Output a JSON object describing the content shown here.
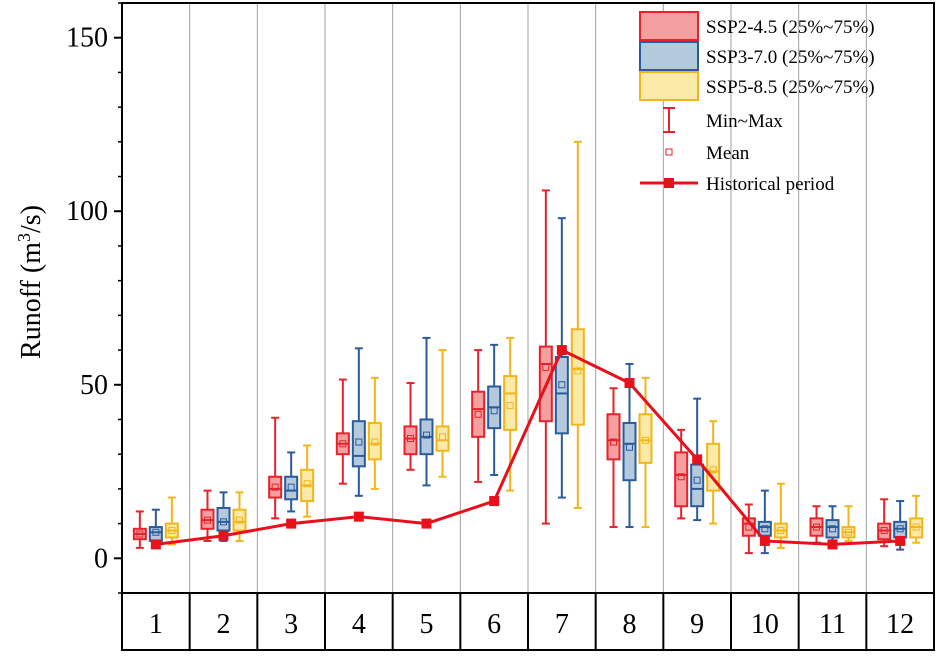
{
  "chart_data": {
    "type": "box",
    "ylabel_main": "Runoff (m",
    "ylabel_sup": "3",
    "ylabel_tail": "/s)",
    "ylim": [
      -10,
      160
    ],
    "yticks": [
      0,
      50,
      100,
      150
    ],
    "yticks_labels": [
      "0",
      "50",
      "100",
      "150"
    ],
    "categories": [
      "1",
      "2",
      "3",
      "4",
      "5",
      "6",
      "7",
      "8",
      "9",
      "10",
      "11",
      "12"
    ],
    "grid": "vertical-separators",
    "legend_position": "top-right",
    "series": [
      {
        "name": "SSP2-4.5 (25%~75%)",
        "edge_color": "#e8222a",
        "fill_color": "#f5a0a0",
        "boxes": [
          {
            "min": 3,
            "q1": 5.5,
            "median": 7,
            "q3": 8.5,
            "max": 13.5,
            "mean": 7
          },
          {
            "min": 5,
            "q1": 8.5,
            "median": 11,
            "q3": 14,
            "max": 19.5,
            "mean": 11
          },
          {
            "min": 11.5,
            "q1": 17.5,
            "median": 20,
            "q3": 23.5,
            "max": 40.5,
            "mean": 20.5
          },
          {
            "min": 21.5,
            "q1": 30,
            "median": 33,
            "q3": 36,
            "max": 51.5,
            "mean": 33
          },
          {
            "min": 25.5,
            "q1": 30,
            "median": 34.5,
            "q3": 38,
            "max": 50.5,
            "mean": 34.5
          },
          {
            "min": 22,
            "q1": 35,
            "median": 43,
            "q3": 48,
            "max": 60,
            "mean": 41.5
          },
          {
            "min": 10,
            "q1": 39.5,
            "median": 56,
            "q3": 61,
            "max": 106,
            "mean": 55
          },
          {
            "min": 9,
            "q1": 28.5,
            "median": 34,
            "q3": 41.5,
            "max": 49,
            "mean": 33.5
          },
          {
            "min": 11.5,
            "q1": 15,
            "median": 24,
            "q3": 30.5,
            "max": 37,
            "mean": 23.5
          },
          {
            "min": 1.5,
            "q1": 6.5,
            "median": 10,
            "q3": 11.5,
            "max": 15.5,
            "mean": 9
          },
          {
            "min": 4.5,
            "q1": 6.5,
            "median": 9,
            "q3": 11.5,
            "max": 15,
            "mean": 9
          },
          {
            "min": 3.5,
            "q1": 5.5,
            "median": 8,
            "q3": 10,
            "max": 17,
            "mean": 8
          }
        ]
      },
      {
        "name": "SSP3-7.0 (25%~75%)",
        "edge_color": "#2a5b9a",
        "fill_color": "#b4c9de",
        "boxes": [
          {
            "min": 3,
            "q1": 5,
            "median": 7.5,
            "q3": 9,
            "max": 14,
            "mean": 7.5
          },
          {
            "min": 5,
            "q1": 8,
            "median": 10.5,
            "q3": 14.5,
            "max": 19,
            "mean": 10.5
          },
          {
            "min": 13.5,
            "q1": 17,
            "median": 19.5,
            "q3": 23.5,
            "max": 30.5,
            "mean": 20.5
          },
          {
            "min": 18,
            "q1": 26.5,
            "median": 29.5,
            "q3": 39.5,
            "max": 60.5,
            "mean": 33.5
          },
          {
            "min": 21,
            "q1": 30,
            "median": 35,
            "q3": 40,
            "max": 63.5,
            "mean": 35.5
          },
          {
            "min": 24,
            "q1": 37.5,
            "median": 43.5,
            "q3": 49.5,
            "max": 61.5,
            "mean": 42.5
          },
          {
            "min": 17.5,
            "q1": 36,
            "median": 47.5,
            "q3": 58,
            "max": 98,
            "mean": 50
          },
          {
            "min": 9,
            "q1": 22.5,
            "median": 33,
            "q3": 39,
            "max": 56,
            "mean": 32
          },
          {
            "min": 11,
            "q1": 15,
            "median": 20,
            "q3": 27,
            "max": 46,
            "mean": 22.5
          },
          {
            "min": 1.5,
            "q1": 6.5,
            "median": 9,
            "q3": 10.5,
            "max": 19.5,
            "mean": 8.5
          },
          {
            "min": 4.5,
            "q1": 6,
            "median": 9,
            "q3": 11,
            "max": 15,
            "mean": 8.5
          },
          {
            "min": 2.5,
            "q1": 6,
            "median": 8.5,
            "q3": 10.5,
            "max": 16.5,
            "mean": 8.5
          }
        ]
      },
      {
        "name": "SSP5-8.5 (25%~75%)",
        "edge_color": "#f2b61a",
        "fill_color": "#fbe9a8",
        "boxes": [
          {
            "min": 4,
            "q1": 6,
            "median": 8,
            "q3": 10,
            "max": 17.5,
            "mean": 8
          },
          {
            "min": 5,
            "q1": 8,
            "median": 10.5,
            "q3": 14,
            "max": 19,
            "mean": 11
          },
          {
            "min": 12,
            "q1": 16.5,
            "median": 21,
            "q3": 25.5,
            "max": 32.5,
            "mean": 21.5
          },
          {
            "min": 20,
            "q1": 28.5,
            "median": 33,
            "q3": 39,
            "max": 52,
            "mean": 33.5
          },
          {
            "min": 23.5,
            "q1": 31,
            "median": 34,
            "q3": 38,
            "max": 60,
            "mean": 35
          },
          {
            "min": 19.5,
            "q1": 37,
            "median": 47.5,
            "q3": 52.5,
            "max": 63.5,
            "mean": 44
          },
          {
            "min": 14.5,
            "q1": 38.5,
            "median": 54.5,
            "q3": 66,
            "max": 120,
            "mean": 54
          },
          {
            "min": 9,
            "q1": 27.5,
            "median": 34,
            "q3": 41.5,
            "max": 52,
            "mean": 34
          },
          {
            "min": 10,
            "q1": 19.5,
            "median": 25,
            "q3": 33,
            "max": 39.5,
            "mean": 25.5
          },
          {
            "min": 3,
            "q1": 6,
            "median": 8,
            "q3": 10,
            "max": 21.5,
            "mean": 8
          },
          {
            "min": 5,
            "q1": 6,
            "median": 7.5,
            "q3": 9,
            "max": 15,
            "mean": 7.5
          },
          {
            "min": 4.5,
            "q1": 6,
            "median": 9,
            "q3": 11.5,
            "max": 18,
            "mean": 9
          }
        ]
      }
    ],
    "historical": {
      "name": "Historical period",
      "color": "#e8101a",
      "values": [
        4,
        6.5,
        10,
        12,
        10,
        16.5,
        60,
        50.5,
        28.5,
        5,
        4,
        5
      ]
    },
    "legend": {
      "box_items": [
        "SSP2-4.5 (25%~75%)",
        "SSP3-7.0 (25%~75%)",
        "SSP5-8.5 (25%~75%)"
      ],
      "minmax_label": "Min~Max",
      "mean_label": "Mean",
      "historical_label": "Historical period"
    }
  }
}
